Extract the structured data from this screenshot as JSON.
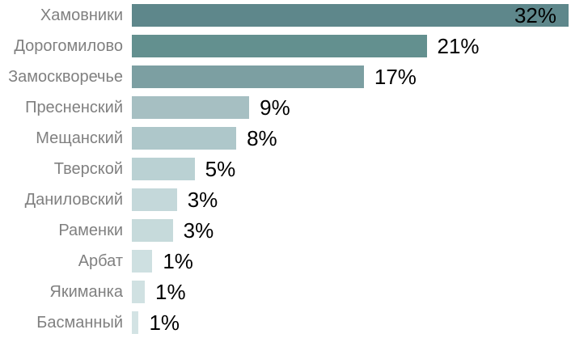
{
  "chart_data": {
    "type": "bar",
    "orientation": "horizontal",
    "title": "",
    "xlabel": "",
    "ylabel": "",
    "categories": [
      "Хамовники",
      "Дорогомилово",
      "Замоскворечье",
      "Пресненский",
      "Мещанский",
      "Тверской",
      "Даниловский",
      "Раменки",
      "Арбат",
      "Якиманка",
      "Басманный"
    ],
    "value_labels": [
      "32%",
      "21%",
      "17%",
      "9%",
      "8%",
      "5%",
      "3%",
      "3%",
      "1%",
      "1%",
      "1%"
    ],
    "values": [
      32,
      21,
      17,
      9,
      8,
      5,
      3,
      3,
      1,
      1,
      1
    ],
    "values_estimated_from_bar_lengths": [
      32,
      21.6,
      17,
      8.6,
      7.65,
      4.6,
      3.3,
      3.0,
      1.5,
      0.95,
      0.5
    ],
    "bar_colors": [
      "#5E878B",
      "#63908F",
      "#7C9FA2",
      "#A6BFC2",
      "#AEC7CA",
      "#BAD1D3",
      "#C4D8DA",
      "#C6DADB",
      "#CEE0E1",
      "#D0E1E2",
      "#D3E3E4"
    ],
    "value_label_inside_bar": [
      true,
      false,
      false,
      false,
      false,
      false,
      false,
      false,
      false,
      false,
      false
    ],
    "layout_hints": {
      "x_range_percent": [
        0,
        32
      ],
      "gridlines": false,
      "axes_visible": false,
      "legend": "none",
      "category_labels_position": "left",
      "value_labels_position": "end-of-bar"
    },
    "colors": {
      "category_label": "#808080",
      "value_label": "#000000",
      "background": "#FFFFFF"
    }
  }
}
